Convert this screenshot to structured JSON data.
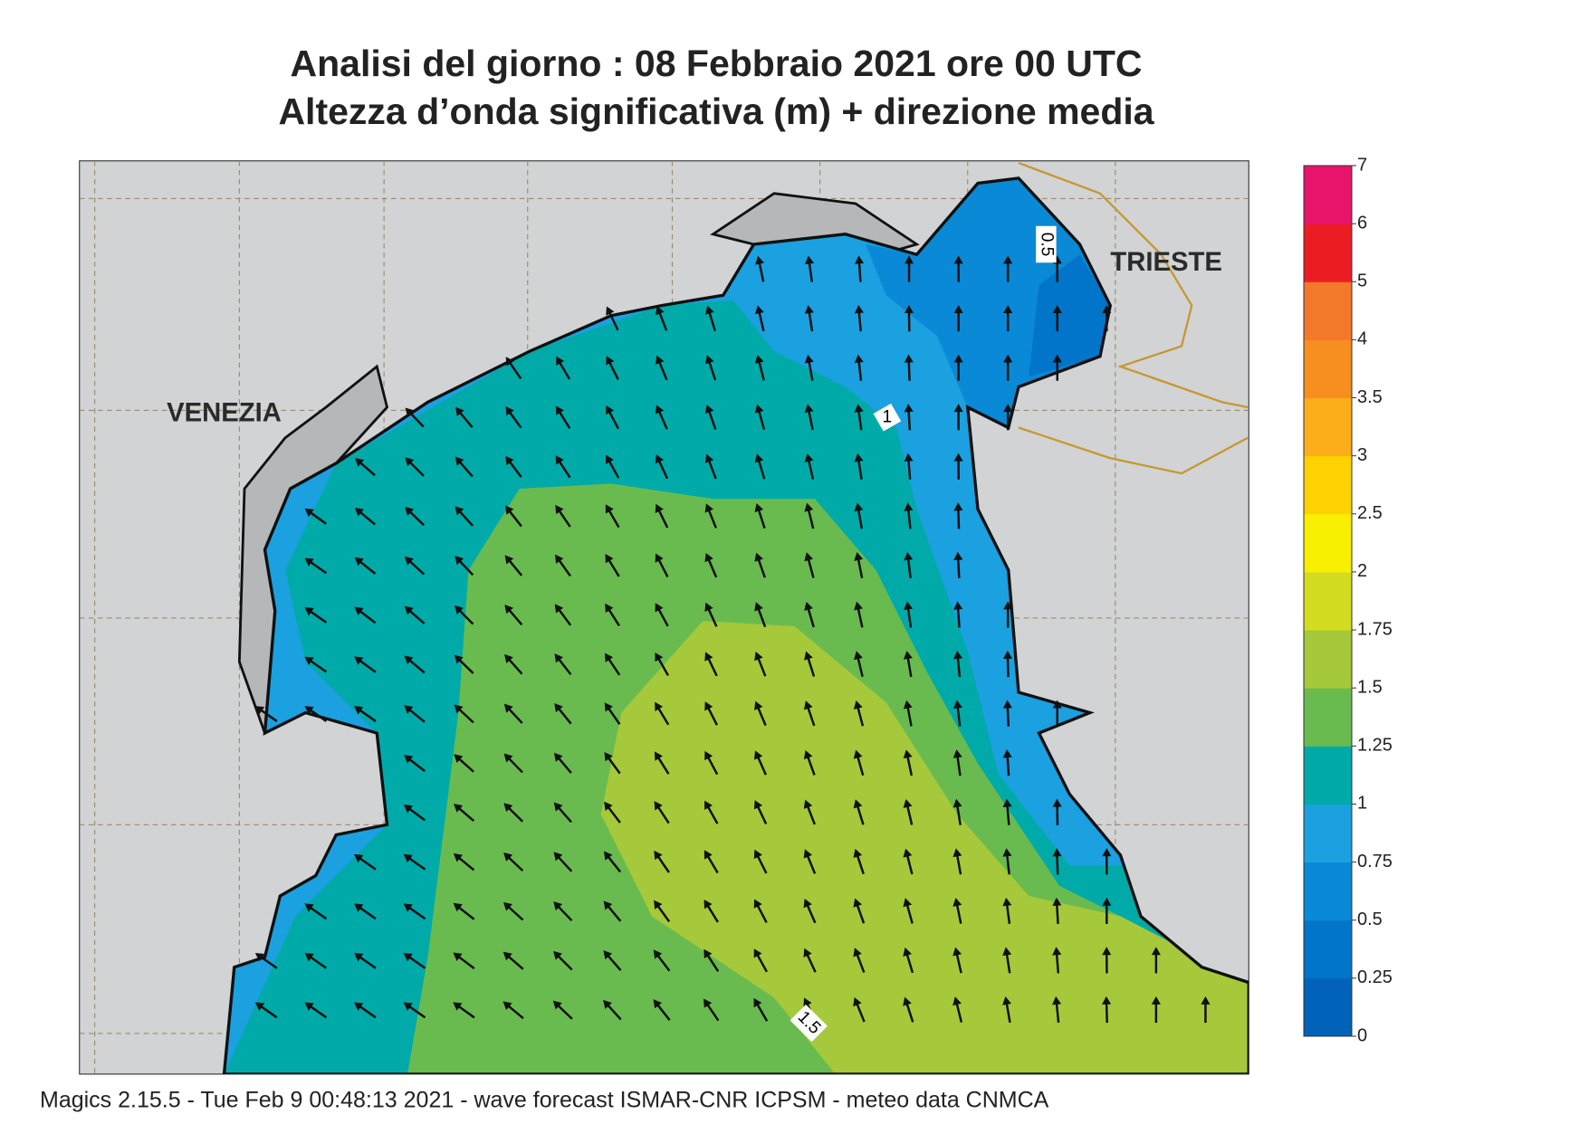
{
  "header": {
    "title": "Analisi del giorno :  08  Febbraio 2021   ore 00 UTC",
    "subtitle": "Altezza d’onda significativa (m) + direzione media"
  },
  "map": {
    "places": [
      "VENEZIA",
      "TRIESTE"
    ],
    "contour_labels": [
      "0.5",
      "1",
      "1.5"
    ]
  },
  "colorbar": {
    "ticks": [
      0,
      0.25,
      0.5,
      0.75,
      1,
      1.25,
      1.5,
      1.75,
      2,
      2.5,
      3,
      3.5,
      4,
      5,
      6,
      7
    ],
    "colors": [
      "#0062b8",
      "#0075c9",
      "#0a89d6",
      "#1ba0e0",
      "#00aaa8",
      "#69bb4f",
      "#a5c93a",
      "#d4dc22",
      "#f8f000",
      "#fcd200",
      "#fbae1a",
      "#f68f1f",
      "#f4782a",
      "#ec1c24",
      "#e8136b"
    ]
  },
  "footer": "Magics 2.15.5 - Tue Feb  9 00:48:13 2021 - wave forecast  ISMAR-CNR  ICPSM - meteo data   CNMCA"
}
